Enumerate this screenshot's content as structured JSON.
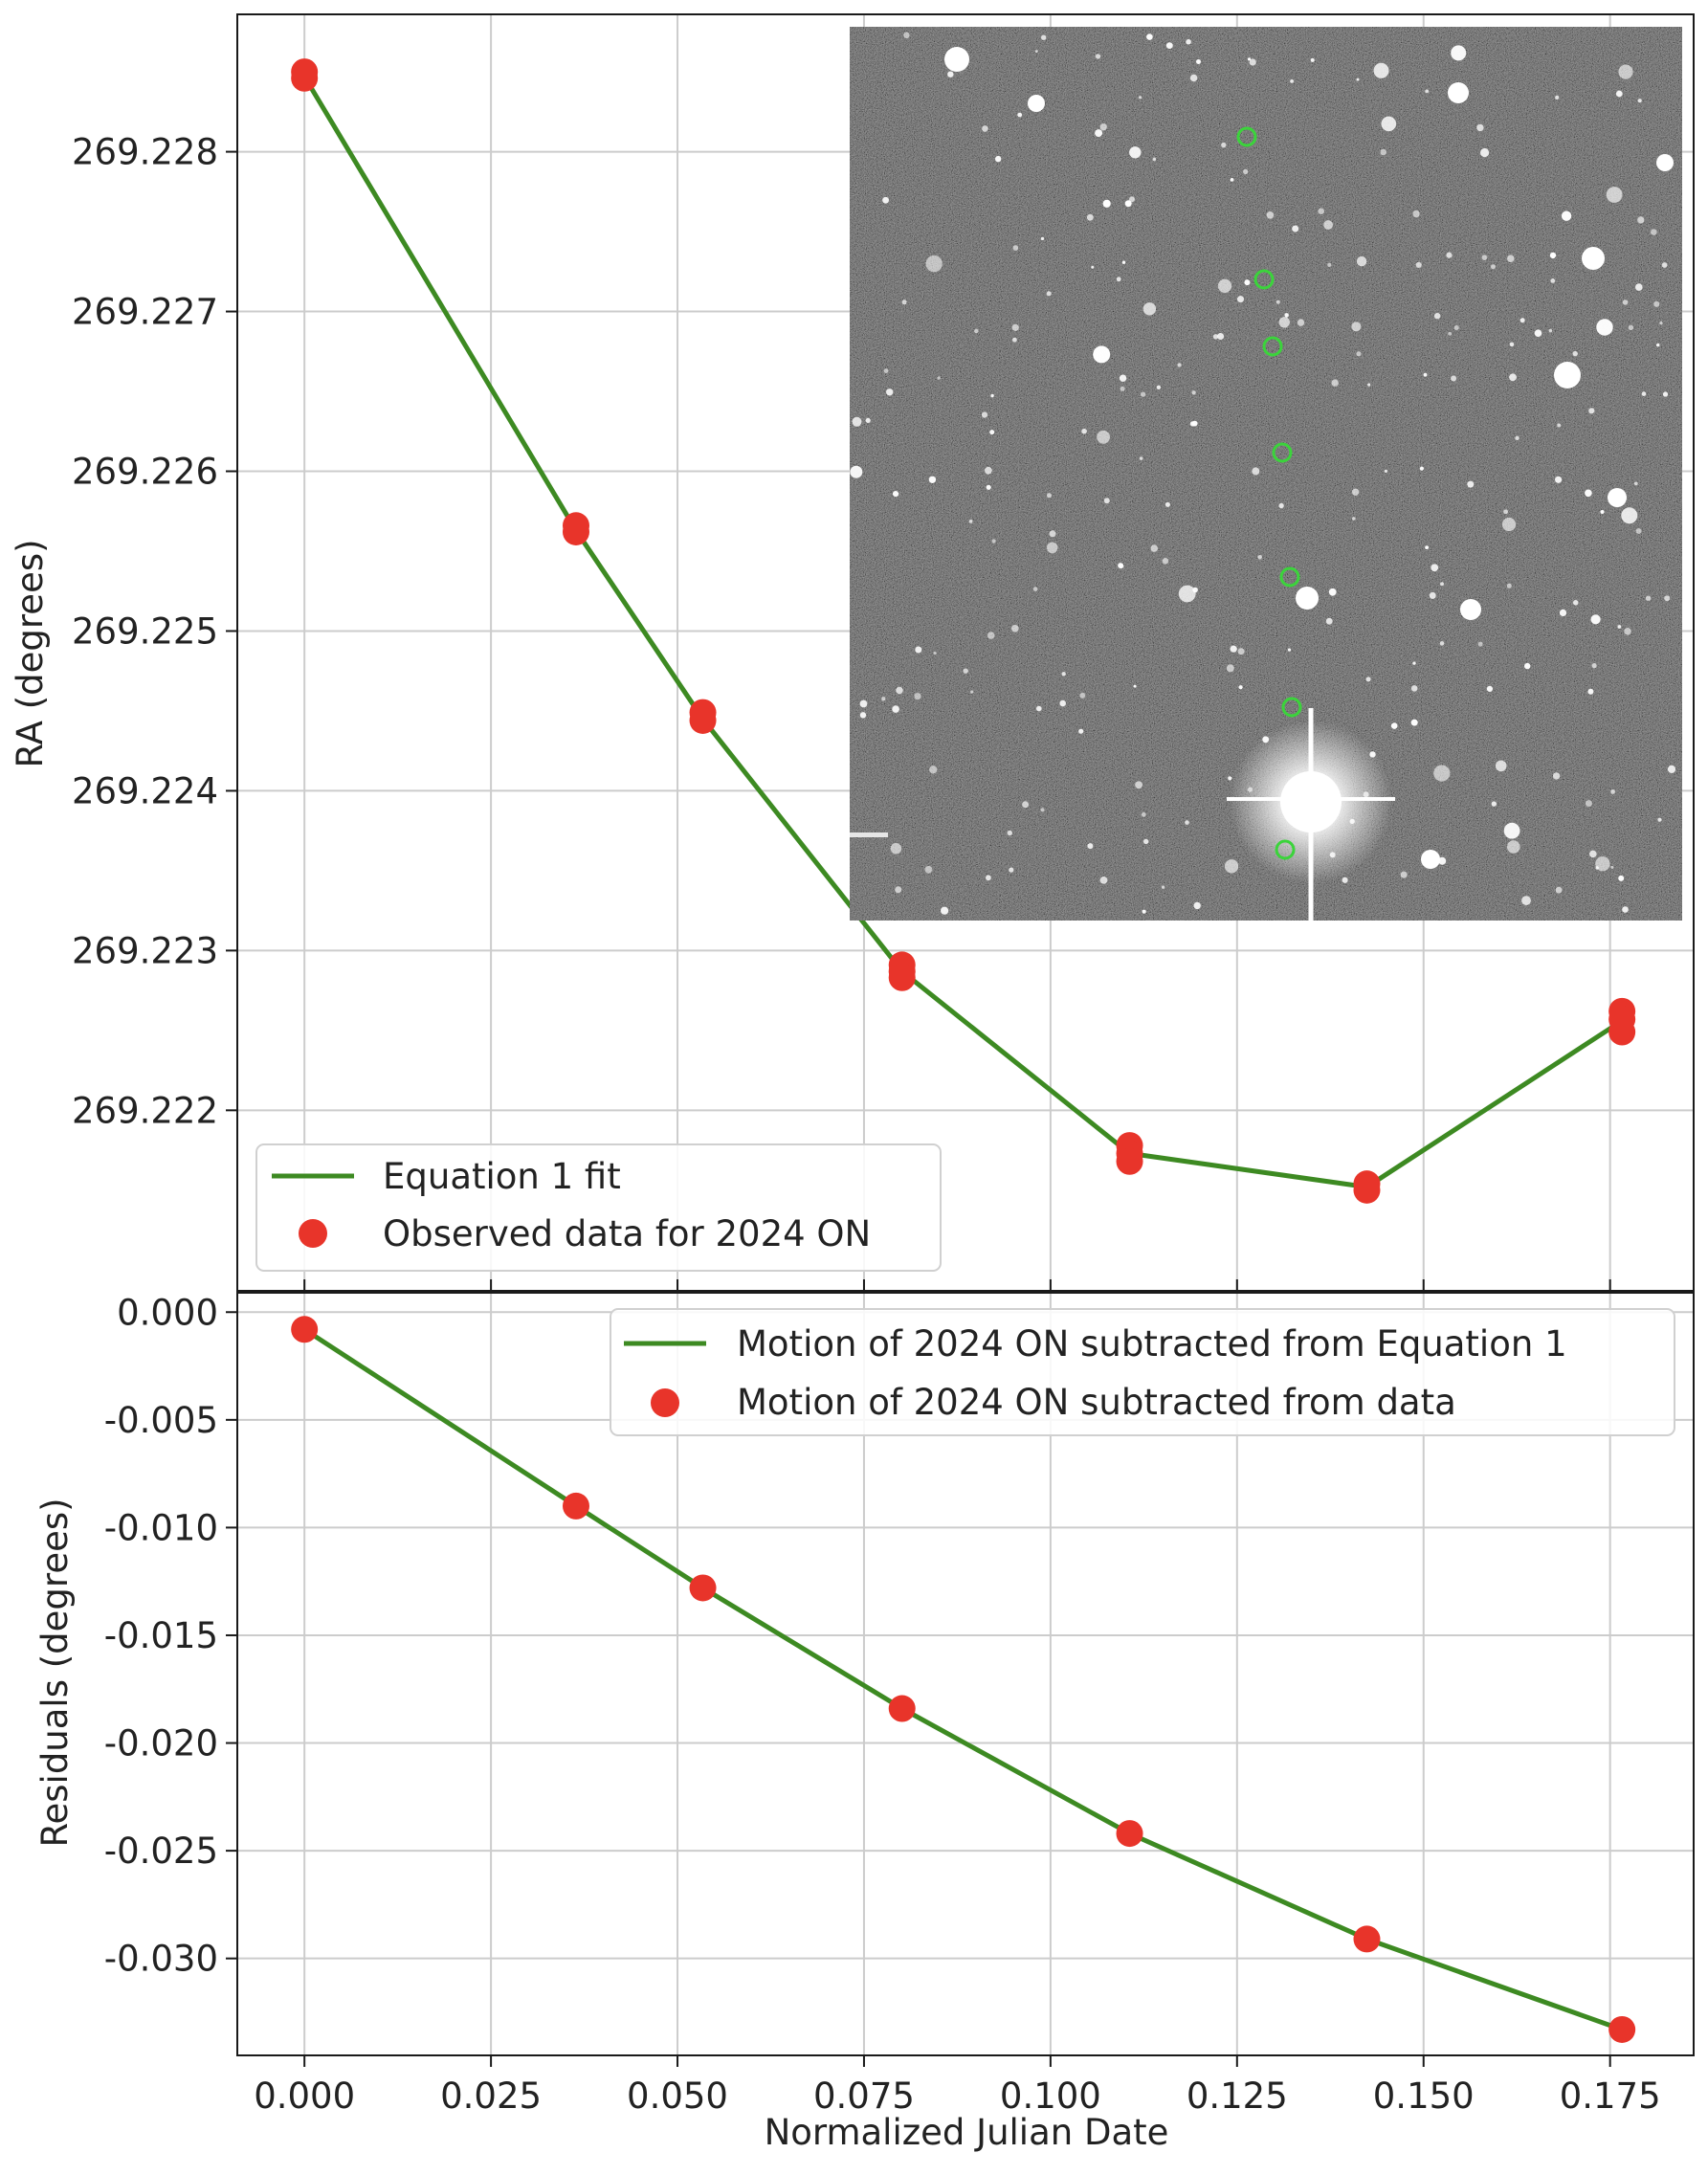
{
  "colors": {
    "fit_line": "#3d8a22",
    "points": "#e8342a",
    "grid": "#cccccc",
    "axis": "#1a1a1a",
    "inset_ring": "#3bd43b"
  },
  "chart_data": [
    {
      "type": "scatter",
      "panel": "top",
      "xlabel": "",
      "ylabel": "RA (degrees)",
      "xlim": [
        -0.009,
        0.1862
      ],
      "ylim": [
        269.22087,
        269.22886
      ],
      "x_ticks": [
        0.0,
        0.025,
        0.05,
        0.075,
        0.1,
        0.125,
        0.15,
        0.175
      ],
      "y_ticks": [
        269.222,
        269.223,
        269.224,
        269.225,
        269.226,
        269.227,
        269.228
      ],
      "y_tick_labels": [
        "269.222",
        "269.223",
        "269.224",
        "269.225",
        "269.226",
        "269.227",
        "269.228"
      ],
      "grid": true,
      "legend_position": "lower-left",
      "series": [
        {
          "name": "Equation 1 fit",
          "kind": "line",
          "x": [
            0.0,
            0.0364,
            0.0534,
            0.0801,
            0.1106,
            0.1424,
            0.1766
          ],
          "y": [
            269.22847,
            269.22563,
            269.22445,
            269.22287,
            269.22173,
            269.22152,
            269.22256
          ]
        },
        {
          "name": "Observed data for 2024 ON",
          "kind": "scatter",
          "x": [
            0.0,
            0.0,
            0.0364,
            0.0364,
            0.0534,
            0.0534,
            0.0801,
            0.0801,
            0.0801,
            0.1106,
            0.1106,
            0.1106,
            0.1424,
            0.1424,
            0.1766,
            0.1766,
            0.1766
          ],
          "y": [
            269.2285,
            269.22846,
            269.22566,
            269.22562,
            269.22449,
            269.22444,
            269.22291,
            269.22287,
            269.22283,
            269.22178,
            269.22173,
            269.22168,
            269.22154,
            269.2215,
            269.22262,
            269.22257,
            269.22249
          ]
        }
      ]
    },
    {
      "type": "scatter",
      "panel": "bottom",
      "xlabel": "Normalized Julian Date",
      "ylabel": "Residuals (degrees)",
      "xlim": [
        -0.009,
        0.1862
      ],
      "ylim": [
        -0.0345,
        0.0009
      ],
      "x_ticks": [
        0.0,
        0.025,
        0.05,
        0.075,
        0.1,
        0.125,
        0.15,
        0.175
      ],
      "x_tick_labels": [
        "0.000",
        "0.025",
        "0.050",
        "0.075",
        "0.100",
        "0.125",
        "0.150",
        "0.175"
      ],
      "y_ticks": [
        0.0,
        -0.005,
        -0.01,
        -0.015,
        -0.02,
        -0.025,
        -0.03
      ],
      "y_tick_labels": [
        "0.000",
        "-0.005",
        "-0.010",
        "-0.015",
        "-0.020",
        "-0.025",
        "-0.030"
      ],
      "grid": true,
      "legend_position": "top-right",
      "series": [
        {
          "name": "Motion of 2024 ON subtracted from Equation 1",
          "kind": "line",
          "x": [
            0.0,
            0.0364,
            0.0534,
            0.0801,
            0.1106,
            0.1424,
            0.1766
          ],
          "y": [
            -0.0008,
            -0.009,
            -0.0128,
            -0.0184,
            -0.0242,
            -0.0291,
            -0.0333
          ]
        },
        {
          "name": "Motion of 2024 ON subtracted from data",
          "kind": "scatter",
          "x": [
            0.0,
            0.0364,
            0.0534,
            0.0801,
            0.1106,
            0.1424,
            0.1766
          ],
          "y": [
            -0.0008,
            -0.009,
            -0.0128,
            -0.0184,
            -0.0242,
            -0.0291,
            -0.0333
          ]
        }
      ]
    }
  ],
  "inset_image": {
    "type": "star field photograph",
    "tracked_positions": 7
  }
}
